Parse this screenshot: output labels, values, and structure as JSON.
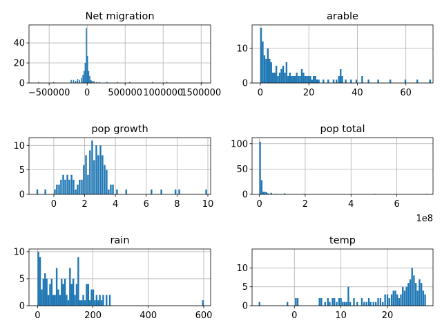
{
  "figure": {
    "bar_color": "#1f77b4",
    "grid_color": "#b0b0b0"
  },
  "chart_data": [
    {
      "type": "bar",
      "title": "Net migration",
      "xlabel": "",
      "ylabel": "",
      "xlim": [
        -765000,
        1625000
      ],
      "ylim": [
        0,
        58
      ],
      "xticks": [
        -500000,
        0,
        500000,
        1000000,
        1500000
      ],
      "xtick_labels": [
        "−500000",
        "0",
        "500000",
        "1000000",
        "1500000"
      ],
      "yticks": [
        0,
        20,
        40
      ],
      "ytick_labels": [
        "0",
        "20",
        "40"
      ],
      "offset_label": "",
      "grid": true,
      "bin_width": 14400,
      "bars": [
        [
          -640000,
          1
        ],
        [
          -440000,
          1
        ],
        [
          -210000,
          3
        ],
        [
          -180000,
          3
        ],
        [
          -150000,
          2
        ],
        [
          -125000,
          4
        ],
        [
          -100000,
          3
        ],
        [
          -75000,
          5
        ],
        [
          -55000,
          8
        ],
        [
          -40000,
          12
        ],
        [
          -25000,
          20
        ],
        [
          -10000,
          55
        ],
        [
          5000,
          27
        ],
        [
          20000,
          12
        ],
        [
          35000,
          7
        ],
        [
          50000,
          3
        ],
        [
          65000,
          2
        ],
        [
          90000,
          2
        ],
        [
          125000,
          1
        ],
        [
          160000,
          1
        ],
        [
          260000,
          1
        ],
        [
          400000,
          1
        ],
        [
          560000,
          1
        ],
        [
          860000,
          1
        ],
        [
          1050000,
          1
        ],
        [
          1510000,
          1
        ]
      ]
    },
    {
      "type": "bar",
      "title": "arable",
      "xlabel": "",
      "ylabel": "",
      "xlim": [
        -3.4,
        71.2
      ],
      "ylim": [
        0,
        16.8
      ],
      "xticks": [
        0,
        20,
        40,
        60
      ],
      "xtick_labels": [
        "0",
        "20",
        "40",
        "60"
      ],
      "yticks": [
        0,
        10
      ],
      "ytick_labels": [
        "0",
        "10"
      ],
      "offset_label": "",
      "grid": true,
      "bin_width": 0.68,
      "bars": [
        [
          0.3,
          16
        ],
        [
          1.0,
          12
        ],
        [
          1.7,
          8
        ],
        [
          2.4,
          7
        ],
        [
          3.1,
          10
        ],
        [
          3.8,
          7
        ],
        [
          4.5,
          6
        ],
        [
          5.2,
          3
        ],
        [
          5.9,
          3
        ],
        [
          6.6,
          5
        ],
        [
          7.3,
          2
        ],
        [
          8.0,
          3
        ],
        [
          8.7,
          4
        ],
        [
          9.4,
          5
        ],
        [
          10.1,
          3
        ],
        [
          10.8,
          6
        ],
        [
          11.5,
          2
        ],
        [
          12.2,
          3
        ],
        [
          12.9,
          2
        ],
        [
          13.6,
          2
        ],
        [
          14.3,
          2
        ],
        [
          15.0,
          3
        ],
        [
          15.7,
          2
        ],
        [
          16.4,
          2
        ],
        [
          17.1,
          4
        ],
        [
          17.8,
          3
        ],
        [
          18.5,
          2
        ],
        [
          19.2,
          2
        ],
        [
          19.9,
          2
        ],
        [
          20.6,
          2
        ],
        [
          21.3,
          1
        ],
        [
          22.0,
          2
        ],
        [
          22.7,
          2
        ],
        [
          23.4,
          1
        ],
        [
          24.1,
          1
        ],
        [
          26.0,
          1
        ],
        [
          28.0,
          1
        ],
        [
          30.2,
          1
        ],
        [
          31.4,
          1
        ],
        [
          32.4,
          2
        ],
        [
          33.1,
          4
        ],
        [
          33.8,
          2
        ],
        [
          35.2,
          1
        ],
        [
          37.4,
          1
        ],
        [
          39.6,
          1
        ],
        [
          42.0,
          2
        ],
        [
          44.6,
          1
        ],
        [
          48.6,
          1
        ],
        [
          53.6,
          1
        ],
        [
          59.8,
          1
        ],
        [
          64.7,
          1
        ],
        [
          70.0,
          1
        ]
      ]
    },
    {
      "type": "bar",
      "title": "pop growth",
      "xlabel": "",
      "ylabel": "",
      "xlim": [
        -1.61,
        10.18
      ],
      "ylim": [
        0,
        11.6
      ],
      "xticks": [
        0,
        2,
        4,
        6,
        8,
        10
      ],
      "xtick_labels": [
        "0",
        "2",
        "4",
        "6",
        "8",
        "10"
      ],
      "yticks": [
        0,
        5,
        10
      ],
      "ytick_labels": [
        "0",
        "5",
        "10"
      ],
      "offset_label": "",
      "grid": true,
      "bin_width": 0.108,
      "bars": [
        [
          -1.07,
          1
        ],
        [
          -0.55,
          1
        ],
        [
          0.07,
          1
        ],
        [
          0.2,
          2
        ],
        [
          0.34,
          2
        ],
        [
          0.47,
          3
        ],
        [
          0.61,
          4
        ],
        [
          0.74,
          3
        ],
        [
          0.88,
          4
        ],
        [
          1.01,
          3
        ],
        [
          1.15,
          4
        ],
        [
          1.28,
          3
        ],
        [
          1.42,
          1
        ],
        [
          1.55,
          2
        ],
        [
          1.68,
          3
        ],
        [
          1.82,
          3
        ],
        [
          1.95,
          6
        ],
        [
          2.09,
          8
        ],
        [
          2.22,
          4
        ],
        [
          2.35,
          9
        ],
        [
          2.49,
          11
        ],
        [
          2.62,
          7
        ],
        [
          2.76,
          10
        ],
        [
          2.89,
          8
        ],
        [
          3.03,
          10
        ],
        [
          3.16,
          8
        ],
        [
          3.3,
          6
        ],
        [
          3.43,
          5
        ],
        [
          3.56,
          1
        ],
        [
          3.7,
          2
        ],
        [
          3.84,
          2
        ],
        [
          4.1,
          1
        ],
        [
          4.7,
          1
        ],
        [
          6.34,
          1
        ],
        [
          6.98,
          1
        ],
        [
          7.9,
          1
        ],
        [
          8.14,
          1
        ],
        [
          9.89,
          1
        ]
      ]
    },
    {
      "type": "bar",
      "title": "pop total",
      "xlabel": "",
      "ylabel": "",
      "xlim": [
        -0.32,
        7.58
      ],
      "ylim": [
        0,
        112
      ],
      "xticks": [
        0,
        2,
        4,
        6
      ],
      "xtick_labels": [
        "0",
        "2",
        "4",
        "6"
      ],
      "yticks": [
        0,
        50,
        100
      ],
      "ytick_labels": [
        "0",
        "50",
        "100"
      ],
      "offset_label": "1e8",
      "grid": true,
      "bin_width": 0.068,
      "bars": [
        [
          0.03,
          104
        ],
        [
          0.1,
          28
        ],
        [
          0.17,
          5
        ],
        [
          0.24,
          5
        ],
        [
          0.31,
          4
        ],
        [
          0.38,
          2
        ],
        [
          0.45,
          1
        ],
        [
          0.52,
          3
        ],
        [
          0.67,
          1
        ],
        [
          0.81,
          1
        ],
        [
          1.1,
          2
        ],
        [
          1.94,
          1
        ],
        [
          5.05,
          1
        ],
        [
          7.3,
          1
        ]
      ]
    },
    {
      "type": "bar",
      "title": "rain",
      "xlabel": "",
      "ylabel": "",
      "xlim": [
        -31,
        625
      ],
      "ylim": [
        0,
        10.5
      ],
      "xticks": [
        0,
        200,
        400,
        600
      ],
      "xtick_labels": [
        "0",
        "200",
        "400",
        "600"
      ],
      "yticks": [
        0,
        5,
        10
      ],
      "ytick_labels": [
        "0",
        "5",
        "10"
      ],
      "offset_label": "",
      "grid": true,
      "bin_width": 5.94,
      "bars": [
        [
          3,
          10
        ],
        [
          9,
          9
        ],
        [
          15,
          3
        ],
        [
          21,
          5
        ],
        [
          27,
          6
        ],
        [
          33,
          5
        ],
        [
          39,
          2
        ],
        [
          45,
          4
        ],
        [
          51,
          5
        ],
        [
          57,
          2
        ],
        [
          63,
          2
        ],
        [
          69,
          7
        ],
        [
          75,
          3
        ],
        [
          81,
          2
        ],
        [
          87,
          5
        ],
        [
          93,
          4
        ],
        [
          99,
          5
        ],
        [
          105,
          2
        ],
        [
          111,
          1
        ],
        [
          117,
          7
        ],
        [
          123,
          4
        ],
        [
          129,
          5
        ],
        [
          135,
          2
        ],
        [
          141,
          4
        ],
        [
          147,
          9
        ],
        [
          153,
          1
        ],
        [
          159,
          1
        ],
        [
          165,
          2
        ],
        [
          171,
          1
        ],
        [
          177,
          4
        ],
        [
          183,
          4
        ],
        [
          189,
          1
        ],
        [
          195,
          3
        ],
        [
          201,
          3
        ],
        [
          207,
          1
        ],
        [
          213,
          2
        ],
        [
          219,
          1
        ],
        [
          225,
          2
        ],
        [
          231,
          1
        ],
        [
          237,
          2
        ],
        [
          249,
          2
        ],
        [
          261,
          2
        ],
        [
          597,
          1
        ]
      ]
    },
    {
      "type": "bar",
      "title": "temp",
      "xlabel": "",
      "ylabel": "",
      "xlim": [
        -9.1,
        29.8
      ],
      "ylim": [
        0,
        15
      ],
      "xticks": [
        0,
        10,
        20
      ],
      "xtick_labels": [
        "0",
        "10",
        "20"
      ],
      "yticks": [
        0,
        5,
        10
      ],
      "ytick_labels": [
        "0",
        "5",
        "10"
      ],
      "offset_label": "",
      "grid": true,
      "bin_width": 0.35,
      "bars": [
        [
          -7.5,
          1
        ],
        [
          -1.5,
          1
        ],
        [
          0.3,
          2
        ],
        [
          0.7,
          2
        ],
        [
          5.4,
          2
        ],
        [
          5.8,
          2
        ],
        [
          6.6,
          1
        ],
        [
          7.2,
          2
        ],
        [
          7.6,
          1
        ],
        [
          8.2,
          2
        ],
        [
          8.6,
          2
        ],
        [
          9.1,
          1
        ],
        [
          9.6,
          2
        ],
        [
          10.0,
          2
        ],
        [
          10.4,
          1
        ],
        [
          10.8,
          1
        ],
        [
          11.2,
          1
        ],
        [
          11.6,
          5
        ],
        [
          12.0,
          1
        ],
        [
          12.8,
          2
        ],
        [
          13.5,
          1
        ],
        [
          14.5,
          2
        ],
        [
          15.0,
          1
        ],
        [
          15.5,
          1
        ],
        [
          16.0,
          2
        ],
        [
          16.4,
          1
        ],
        [
          17.0,
          1
        ],
        [
          17.5,
          1
        ],
        [
          18.0,
          2
        ],
        [
          18.5,
          2
        ],
        [
          19.0,
          1
        ],
        [
          19.5,
          3
        ],
        [
          20.0,
          3
        ],
        [
          20.4,
          2
        ],
        [
          20.9,
          3
        ],
        [
          21.3,
          4
        ],
        [
          21.7,
          4
        ],
        [
          22.1,
          3
        ],
        [
          22.5,
          2
        ],
        [
          22.9,
          3
        ],
        [
          23.3,
          5
        ],
        [
          23.7,
          4
        ],
        [
          24.1,
          5
        ],
        [
          24.5,
          6
        ],
        [
          24.9,
          7
        ],
        [
          25.3,
          10
        ],
        [
          25.7,
          8
        ],
        [
          26.1,
          6
        ],
        [
          26.5,
          4
        ],
        [
          26.9,
          7
        ],
        [
          27.3,
          6
        ],
        [
          27.7,
          4
        ],
        [
          28.1,
          3
        ]
      ]
    }
  ]
}
